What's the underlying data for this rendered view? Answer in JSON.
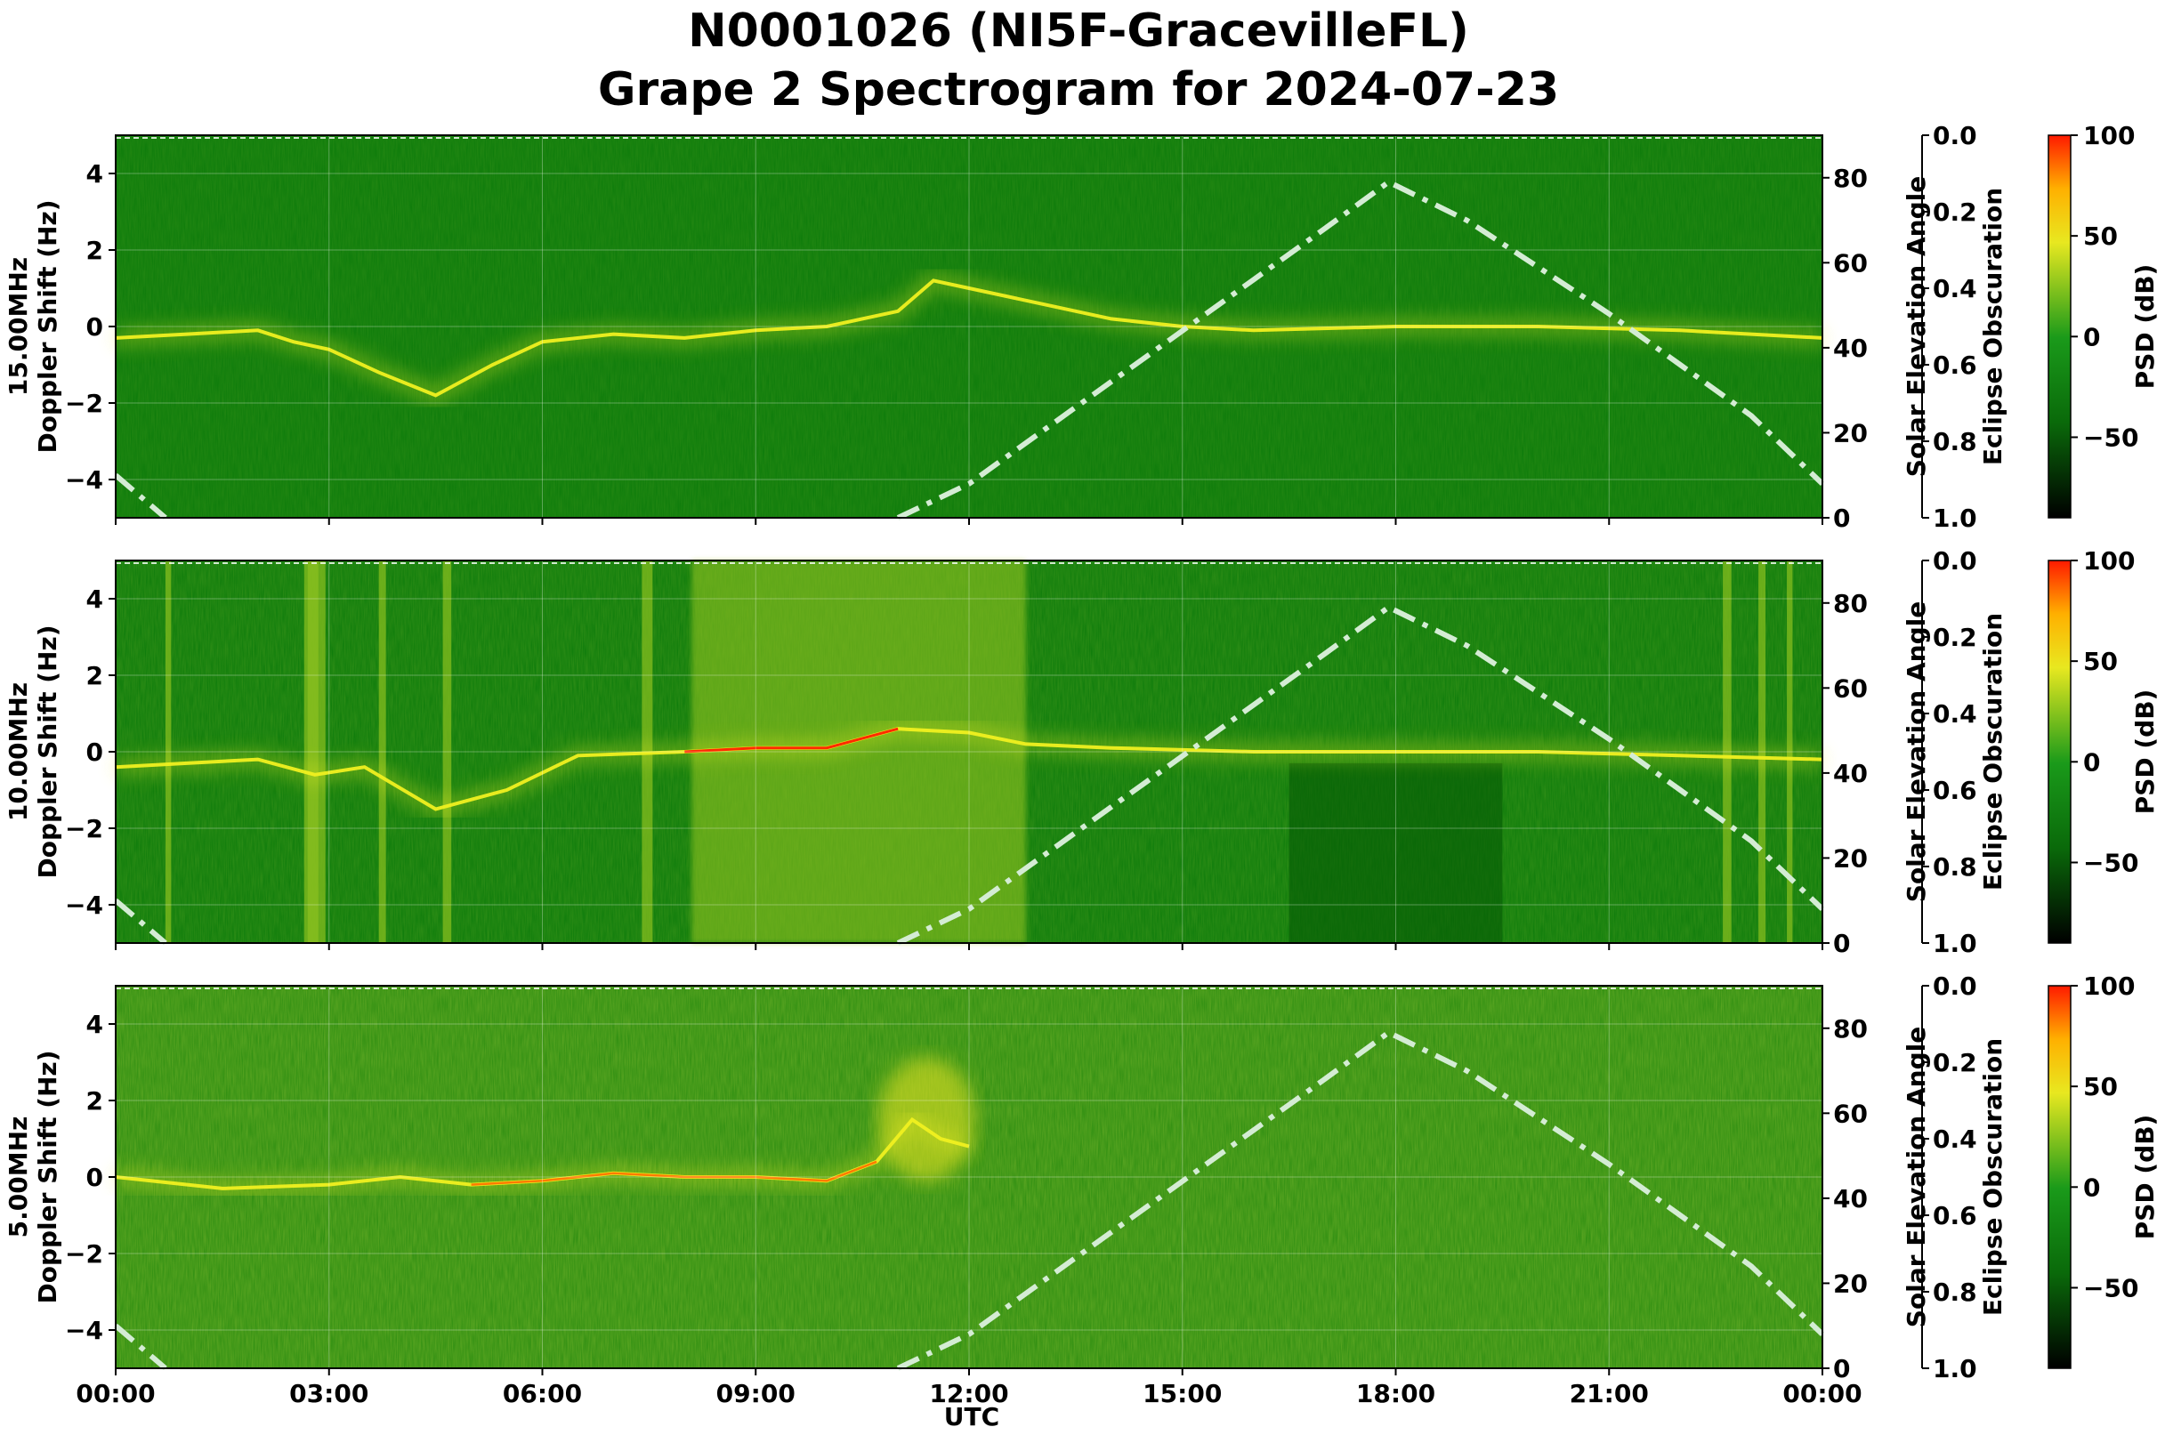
{
  "title_line1": "N0001026 (NI5F-GracevilleFL)",
  "title_line2": "Grape 2 Spectrogram for 2024-07-23",
  "xlabel": "UTC",
  "x_ticks": [
    "00:00",
    "03:00",
    "06:00",
    "09:00",
    "12:00",
    "15:00",
    "18:00",
    "21:00",
    "00:00"
  ],
  "colors": {
    "background_green": "#0a7a0a",
    "dark_green": "#055a05",
    "yellow": "#f0f020",
    "red": "#ff2a00",
    "solar_curve": "#d4ecd4",
    "grid": "#ffffff"
  },
  "chart_data": [
    {
      "type": "heatmap",
      "panel_label": "15.00MHz",
      "ylabel": "Doppler Shift (Hz)",
      "ylim": [
        -5,
        5
      ],
      "y_ticks": [
        "4",
        "2",
        "0",
        "−2",
        "−4"
      ],
      "right_axis_1": {
        "label": "Solar Elevation Angle",
        "ylim": [
          0,
          90
        ],
        "ticks": [
          "80",
          "60",
          "40",
          "20",
          "0"
        ]
      },
      "right_axis_2": {
        "label": "Eclipse Obscuration",
        "ylim": [
          1.0,
          0.0
        ],
        "ticks": [
          "0.0",
          "0.2",
          "0.4",
          "0.6",
          "0.8",
          "1.0"
        ]
      },
      "colorbar": {
        "label": "PSD (dB)",
        "range": [
          -90,
          100
        ],
        "ticks": [
          "100",
          "50",
          "0",
          "−50"
        ]
      },
      "doppler_trace_hz": [
        [
          0,
          -0.3
        ],
        [
          1,
          -0.2
        ],
        [
          2,
          -0.1
        ],
        [
          2.5,
          -0.4
        ],
        [
          3,
          -0.6
        ],
        [
          3.7,
          -1.2
        ],
        [
          4.5,
          -1.8
        ],
        [
          5.3,
          -1.0
        ],
        [
          6,
          -0.4
        ],
        [
          7,
          -0.2
        ],
        [
          8,
          -0.3
        ],
        [
          9,
          -0.1
        ],
        [
          10,
          0.0
        ],
        [
          11,
          0.4
        ],
        [
          11.5,
          1.2
        ],
        [
          12,
          1.0
        ],
        [
          13,
          0.6
        ],
        [
          14,
          0.2
        ],
        [
          15,
          0.0
        ],
        [
          16,
          -0.1
        ],
        [
          18,
          0.0
        ],
        [
          20,
          0.0
        ],
        [
          22,
          -0.1
        ],
        [
          24,
          -0.3
        ]
      ]
    },
    {
      "type": "heatmap",
      "panel_label": "10.00MHz",
      "ylabel": "Doppler Shift (Hz)",
      "ylim": [
        -5,
        5
      ],
      "y_ticks": [
        "4",
        "2",
        "0",
        "−2",
        "−4"
      ],
      "right_axis_1": {
        "label": "Solar Elevation Angle",
        "ylim": [
          0,
          90
        ],
        "ticks": [
          "80",
          "60",
          "40",
          "20",
          "0"
        ]
      },
      "right_axis_2": {
        "label": "Eclipse Obscuration",
        "ylim": [
          1.0,
          0.0
        ],
        "ticks": [
          "0.0",
          "0.2",
          "0.4",
          "0.6",
          "0.8",
          "1.0"
        ]
      },
      "colorbar": {
        "label": "PSD (dB)",
        "range": [
          -90,
          100
        ],
        "ticks": [
          "100",
          "50",
          "0",
          "−50"
        ]
      },
      "doppler_trace_hz": [
        [
          0,
          -0.4
        ],
        [
          1,
          -0.3
        ],
        [
          2,
          -0.2
        ],
        [
          2.8,
          -0.6
        ],
        [
          3.5,
          -0.4
        ],
        [
          4.5,
          -1.5
        ],
        [
          5.5,
          -1.0
        ],
        [
          6.5,
          -0.1
        ],
        [
          8,
          0.0
        ],
        [
          9,
          0.1
        ],
        [
          10,
          0.1
        ],
        [
          11,
          0.6
        ],
        [
          12,
          0.5
        ],
        [
          12.8,
          0.2
        ],
        [
          14,
          0.1
        ],
        [
          16,
          0.0
        ],
        [
          18,
          0.0
        ],
        [
          20,
          0.0
        ],
        [
          22,
          -0.1
        ],
        [
          24,
          -0.2
        ]
      ]
    },
    {
      "type": "heatmap",
      "panel_label": "5.00MHz",
      "ylabel": "Doppler Shift (Hz)",
      "ylim": [
        -5,
        5
      ],
      "y_ticks": [
        "4",
        "2",
        "0",
        "−2",
        "−4"
      ],
      "right_axis_1": {
        "label": "Solar Elevation Angle",
        "ylim": [
          0,
          90
        ],
        "ticks": [
          "80",
          "60",
          "40",
          "20",
          "0"
        ]
      },
      "right_axis_2": {
        "label": "Eclipse Obscuration",
        "ylim": [
          1.0,
          0.0
        ],
        "ticks": [
          "0.0",
          "0.2",
          "0.4",
          "0.6",
          "0.8",
          "1.0"
        ]
      },
      "colorbar": {
        "label": "PSD (dB)",
        "range": [
          -90,
          100
        ],
        "ticks": [
          "100",
          "50",
          "0",
          "−50"
        ]
      },
      "doppler_trace_hz": [
        [
          0,
          0.0
        ],
        [
          1.5,
          -0.3
        ],
        [
          3,
          -0.2
        ],
        [
          4,
          0.0
        ],
        [
          5,
          -0.2
        ],
        [
          6,
          -0.1
        ],
        [
          7,
          0.1
        ],
        [
          8,
          0.0
        ],
        [
          9,
          0.0
        ],
        [
          10,
          -0.1
        ],
        [
          10.7,
          0.4
        ],
        [
          11.2,
          1.5
        ],
        [
          11.6,
          1.0
        ],
        [
          12,
          0.8
        ]
      ]
    }
  ],
  "solar_elevation_deg": [
    [
      0,
      10
    ],
    [
      0.7,
      0
    ],
    [
      11,
      0
    ],
    [
      12,
      8
    ],
    [
      13,
      20
    ],
    [
      14,
      32
    ],
    [
      15,
      44
    ],
    [
      16,
      56
    ],
    [
      17,
      68
    ],
    [
      17.9,
      79
    ],
    [
      19,
      70
    ],
    [
      20,
      59
    ],
    [
      21,
      48
    ],
    [
      22,
      36
    ],
    [
      23,
      24
    ],
    [
      24,
      8
    ]
  ]
}
